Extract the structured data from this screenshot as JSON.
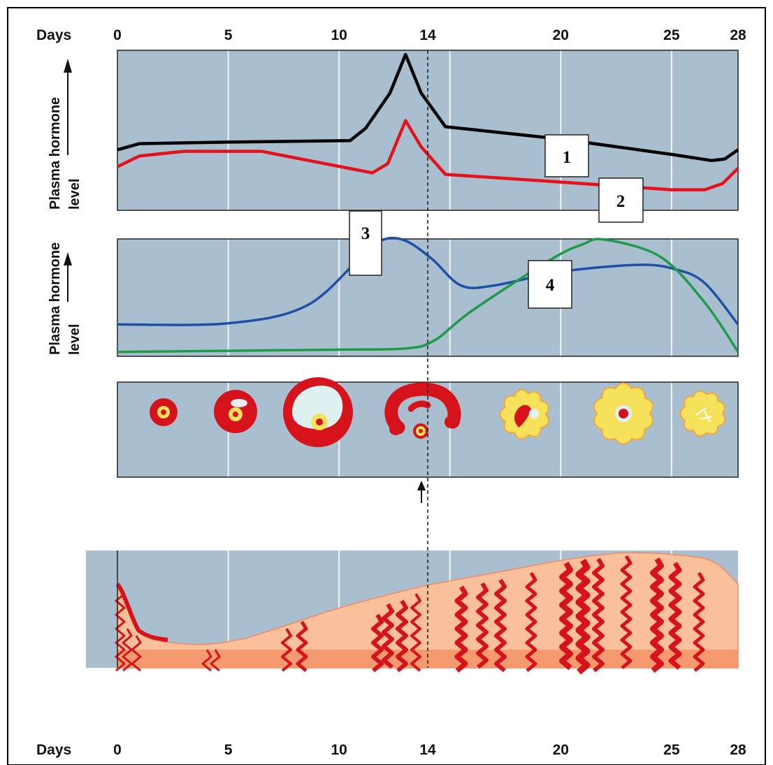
{
  "axis": {
    "label": "Days",
    "ticks": [
      {
        "day": 0,
        "label": "0"
      },
      {
        "day": 5,
        "label": "5"
      },
      {
        "day": 10,
        "label": "10"
      },
      {
        "day": 14,
        "label": "14"
      },
      {
        "day": 20,
        "label": "20"
      },
      {
        "day": 25,
        "label": "25"
      },
      {
        "day": 28,
        "label": "28"
      }
    ]
  },
  "panels": {
    "top": {
      "ylabel_line1": "Plasma hormone",
      "ylabel_line2": "level"
    },
    "middle": {
      "ylabel_line1": "Plasma hormone",
      "ylabel_line2": "level"
    }
  },
  "labels": {
    "one": "1",
    "two": "2",
    "three": "3",
    "four": "4"
  },
  "ovulation_day": 14,
  "colors": {
    "panel_bg": "#a9bfcf",
    "line_1": "#000000",
    "line_2": "#e3121b",
    "line_3": "#1f4fa8",
    "line_4": "#1e9a4a",
    "follicle_red": "#d6121a",
    "corpus_yellow": "#f6e15a",
    "endometrium": "#f9c09a",
    "endometrium_base": "#f59a6e"
  },
  "chart_data": [
    {
      "type": "line",
      "panel": "top",
      "x_range": [
        0,
        28
      ],
      "series": [
        {
          "id": "1",
          "color": "#000000",
          "points": [
            [
              0,
              0.38
            ],
            [
              1,
              0.42
            ],
            [
              5,
              0.43
            ],
            [
              10.5,
              0.44
            ],
            [
              11.2,
              0.52
            ],
            [
              12.3,
              0.75
            ],
            [
              13,
              1.0
            ],
            [
              13.7,
              0.75
            ],
            [
              14.8,
              0.53
            ],
            [
              20,
              0.45
            ],
            [
              25,
              0.35
            ],
            [
              26.8,
              0.31
            ],
            [
              27.4,
              0.32
            ],
            [
              28,
              0.38
            ]
          ]
        },
        {
          "id": "2",
          "color": "#e3121b",
          "points": [
            [
              0,
              0.27
            ],
            [
              1,
              0.34
            ],
            [
              3,
              0.37
            ],
            [
              6.5,
              0.37
            ],
            [
              11.5,
              0.23
            ],
            [
              12.2,
              0.29
            ],
            [
              13,
              0.57
            ],
            [
              13.7,
              0.4
            ],
            [
              14.8,
              0.22
            ],
            [
              20,
              0.17
            ],
            [
              25,
              0.12
            ],
            [
              26.5,
              0.12
            ],
            [
              27.3,
              0.16
            ],
            [
              28,
              0.26
            ]
          ]
        }
      ]
    },
    {
      "type": "line",
      "panel": "middle",
      "x_range": [
        0,
        28
      ],
      "series": [
        {
          "id": "3",
          "color": "#1f4fa8",
          "points": [
            [
              0,
              0.26
            ],
            [
              5,
              0.27
            ],
            [
              8.5,
              0.42
            ],
            [
              11,
              0.85
            ],
            [
              12,
              1.0
            ],
            [
              13,
              0.99
            ],
            [
              14.2,
              0.83
            ],
            [
              15.5,
              0.6
            ],
            [
              17,
              0.6
            ],
            [
              20,
              0.72
            ],
            [
              23.5,
              0.78
            ],
            [
              25.2,
              0.74
            ],
            [
              26.5,
              0.62
            ],
            [
              28,
              0.26
            ]
          ]
        },
        {
          "id": "4",
          "color": "#1e9a4a",
          "points": [
            [
              0,
              0.02
            ],
            [
              5,
              0.03
            ],
            [
              10,
              0.04
            ],
            [
              13,
              0.05
            ],
            [
              14.3,
              0.12
            ],
            [
              16,
              0.38
            ],
            [
              19.5,
              0.82
            ],
            [
              21,
              0.96
            ],
            [
              22,
              1.0
            ],
            [
              24.5,
              0.85
            ],
            [
              26.5,
              0.45
            ],
            [
              28,
              0.02
            ]
          ]
        }
      ]
    }
  ]
}
